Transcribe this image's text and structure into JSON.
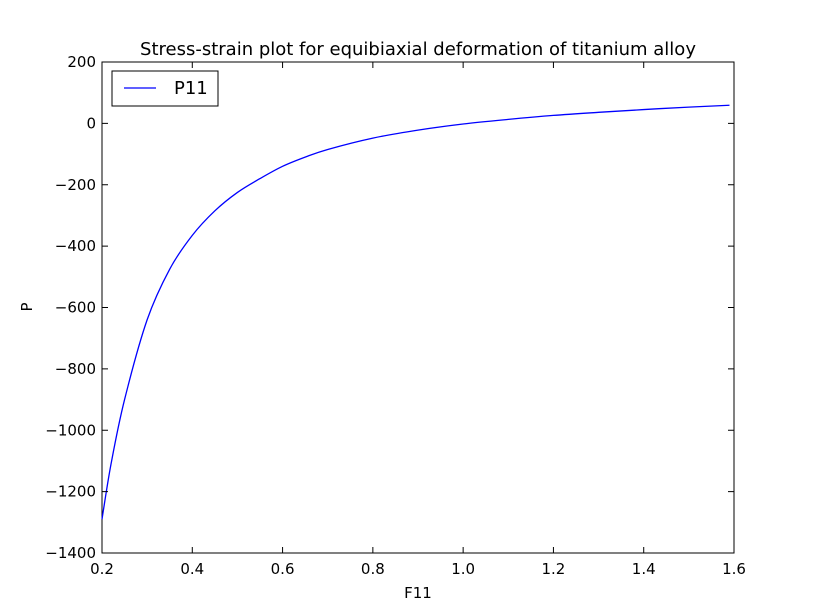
{
  "chart_data": {
    "type": "line",
    "title": "Stress-strain plot for equibiaxial deformation of titanium alloy",
    "xlabel": "F11",
    "ylabel": "P",
    "xlim": [
      0.2,
      1.6
    ],
    "ylim": [
      -1400,
      200
    ],
    "xticks": [
      "0.2",
      "0.4",
      "0.6",
      "0.8",
      "1.0",
      "1.2",
      "1.4",
      "1.6"
    ],
    "yticks": [
      "200",
      "0",
      "−200",
      "−400",
      "−600",
      "−800",
      "−1000",
      "−1200",
      "−1400"
    ],
    "grid": false,
    "legend_position": "top-left",
    "series": [
      {
        "name": "P11",
        "color": "#0000ff",
        "x": [
          0.2,
          0.22,
          0.25,
          0.3,
          0.35,
          0.4,
          0.45,
          0.5,
          0.55,
          0.6,
          0.65,
          0.7,
          0.8,
          0.9,
          1.0,
          1.1,
          1.2,
          1.3,
          1.4,
          1.5,
          1.59
        ],
        "y": [
          -1290,
          -1110,
          -900,
          -640,
          -475,
          -365,
          -285,
          -225,
          -180,
          -140,
          -110,
          -85,
          -48,
          -22,
          -2,
          13,
          26,
          36,
          45,
          53,
          59
        ]
      }
    ]
  }
}
